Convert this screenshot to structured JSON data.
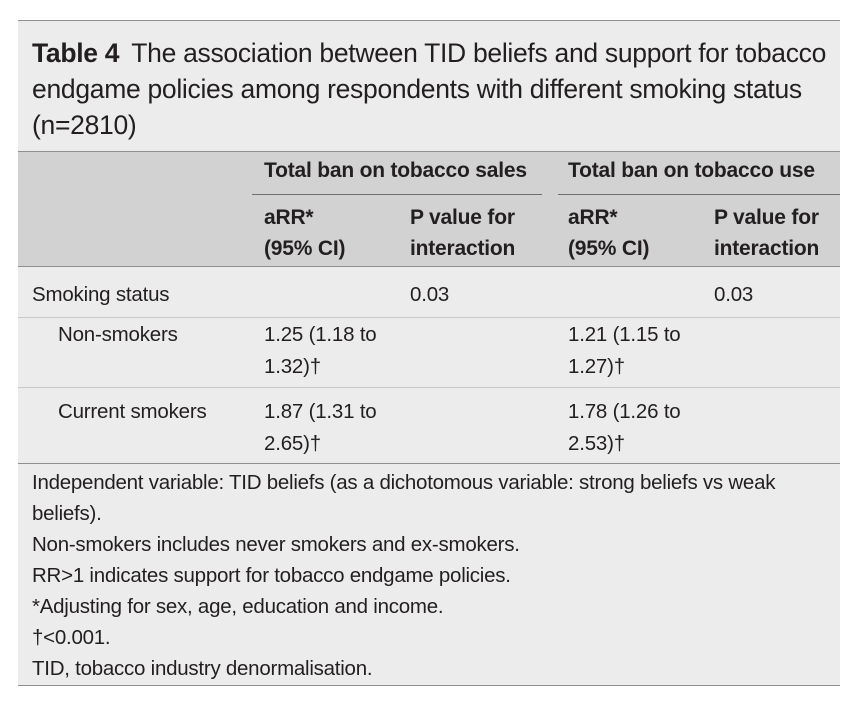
{
  "caption": {
    "label": "Table 4",
    "text": "The association between TID beliefs and support for tobacco endgame policies among respondents with different smoking status (n=2810)"
  },
  "headers": {
    "group_sales": "Total ban on tobacco sales",
    "group_use": "Total ban on tobacco use",
    "arr_sales": "aRR*\n(95% CI)",
    "p_sales": "P value for\ninteraction",
    "arr_use": "aRR*\n(95% CI)",
    "p_use": "P value for\ninteraction"
  },
  "rows": [
    {
      "label": "Smoking status",
      "arr_sales": "",
      "p_sales": "0.03",
      "arr_use": "",
      "p_use": "0.03"
    },
    {
      "label": "Non-smokers",
      "arr_sales": "1.25 (1.18 to\n1.32)†",
      "p_sales": "",
      "arr_use": "1.21 (1.15 to\n1.27)†",
      "p_use": ""
    },
    {
      "label": "Current smokers",
      "arr_sales": "1.87 (1.31 to\n2.65)†",
      "p_sales": "",
      "arr_use": "1.78 (1.26 to\n2.53)†",
      "p_use": ""
    }
  ],
  "footnotes": [
    "Independent variable: TID beliefs (as a dichotomous variable: strong beliefs vs weak beliefs).",
    "Non-smokers includes never smokers and ex-smokers.",
    "RR>1 indicates support for tobacco endgame policies.",
    "*Adjusting for sex, age, education and income.",
    "†<0.001.",
    "TID, tobacco industry denormalisation."
  ]
}
